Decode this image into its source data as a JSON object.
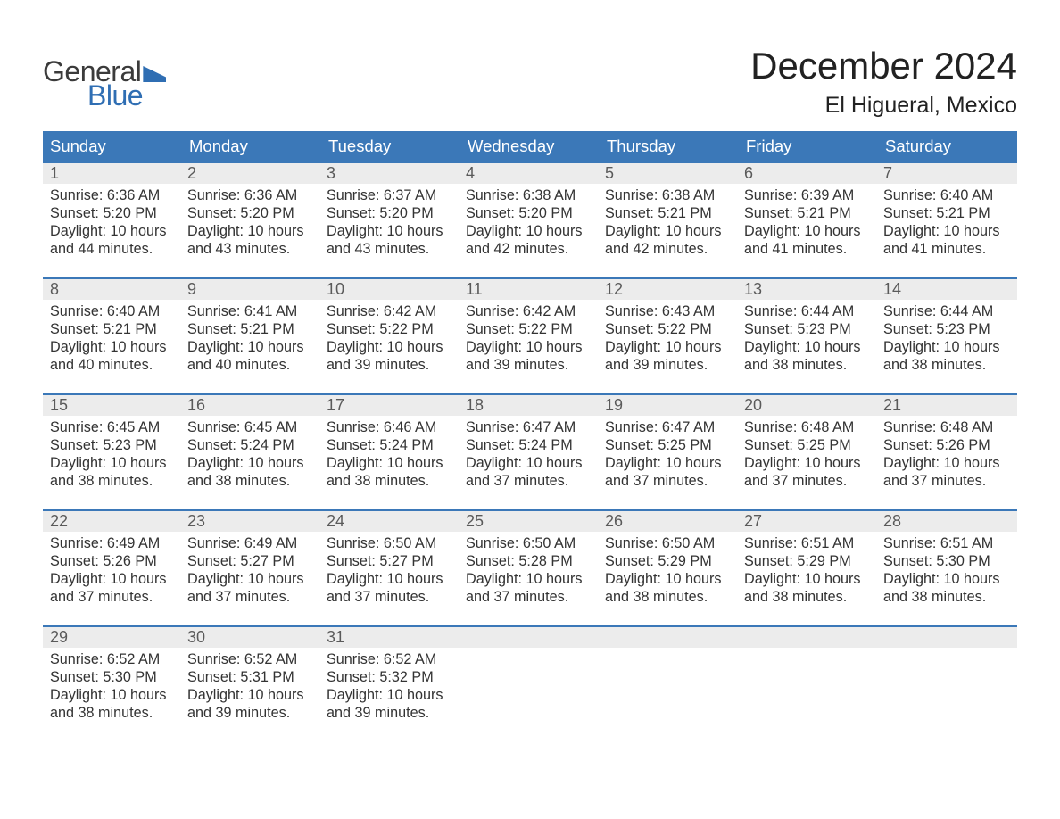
{
  "brand": {
    "general": "General",
    "blue": "Blue"
  },
  "title": "December 2024",
  "location": "El Higueral, Mexico",
  "colors": {
    "header_bg": "#3b78b8",
    "daynum_bg": "#ececec",
    "border": "#3b78b8",
    "text": "#333333",
    "daynum_text": "#5a5a5a",
    "logo_gray": "#3b3b3b",
    "logo_blue": "#2f6eb3",
    "page_bg": "#ffffff"
  },
  "typography": {
    "title_fontsize": 42,
    "location_fontsize": 25,
    "dow_fontsize": 18.5,
    "daynum_fontsize": 18,
    "body_fontsize": 16.2
  },
  "days_of_week": [
    "Sunday",
    "Monday",
    "Tuesday",
    "Wednesday",
    "Thursday",
    "Friday",
    "Saturday"
  ],
  "weeks": [
    [
      {
        "n": "1",
        "sunrise": "Sunrise: 6:36 AM",
        "sunset": "Sunset: 5:20 PM",
        "d1": "Daylight: 10 hours",
        "d2": "and 44 minutes."
      },
      {
        "n": "2",
        "sunrise": "Sunrise: 6:36 AM",
        "sunset": "Sunset: 5:20 PM",
        "d1": "Daylight: 10 hours",
        "d2": "and 43 minutes."
      },
      {
        "n": "3",
        "sunrise": "Sunrise: 6:37 AM",
        "sunset": "Sunset: 5:20 PM",
        "d1": "Daylight: 10 hours",
        "d2": "and 43 minutes."
      },
      {
        "n": "4",
        "sunrise": "Sunrise: 6:38 AM",
        "sunset": "Sunset: 5:20 PM",
        "d1": "Daylight: 10 hours",
        "d2": "and 42 minutes."
      },
      {
        "n": "5",
        "sunrise": "Sunrise: 6:38 AM",
        "sunset": "Sunset: 5:21 PM",
        "d1": "Daylight: 10 hours",
        "d2": "and 42 minutes."
      },
      {
        "n": "6",
        "sunrise": "Sunrise: 6:39 AM",
        "sunset": "Sunset: 5:21 PM",
        "d1": "Daylight: 10 hours",
        "d2": "and 41 minutes."
      },
      {
        "n": "7",
        "sunrise": "Sunrise: 6:40 AM",
        "sunset": "Sunset: 5:21 PM",
        "d1": "Daylight: 10 hours",
        "d2": "and 41 minutes."
      }
    ],
    [
      {
        "n": "8",
        "sunrise": "Sunrise: 6:40 AM",
        "sunset": "Sunset: 5:21 PM",
        "d1": "Daylight: 10 hours",
        "d2": "and 40 minutes."
      },
      {
        "n": "9",
        "sunrise": "Sunrise: 6:41 AM",
        "sunset": "Sunset: 5:21 PM",
        "d1": "Daylight: 10 hours",
        "d2": "and 40 minutes."
      },
      {
        "n": "10",
        "sunrise": "Sunrise: 6:42 AM",
        "sunset": "Sunset: 5:22 PM",
        "d1": "Daylight: 10 hours",
        "d2": "and 39 minutes."
      },
      {
        "n": "11",
        "sunrise": "Sunrise: 6:42 AM",
        "sunset": "Sunset: 5:22 PM",
        "d1": "Daylight: 10 hours",
        "d2": "and 39 minutes."
      },
      {
        "n": "12",
        "sunrise": "Sunrise: 6:43 AM",
        "sunset": "Sunset: 5:22 PM",
        "d1": "Daylight: 10 hours",
        "d2": "and 39 minutes."
      },
      {
        "n": "13",
        "sunrise": "Sunrise: 6:44 AM",
        "sunset": "Sunset: 5:23 PM",
        "d1": "Daylight: 10 hours",
        "d2": "and 38 minutes."
      },
      {
        "n": "14",
        "sunrise": "Sunrise: 6:44 AM",
        "sunset": "Sunset: 5:23 PM",
        "d1": "Daylight: 10 hours",
        "d2": "and 38 minutes."
      }
    ],
    [
      {
        "n": "15",
        "sunrise": "Sunrise: 6:45 AM",
        "sunset": "Sunset: 5:23 PM",
        "d1": "Daylight: 10 hours",
        "d2": "and 38 minutes."
      },
      {
        "n": "16",
        "sunrise": "Sunrise: 6:45 AM",
        "sunset": "Sunset: 5:24 PM",
        "d1": "Daylight: 10 hours",
        "d2": "and 38 minutes."
      },
      {
        "n": "17",
        "sunrise": "Sunrise: 6:46 AM",
        "sunset": "Sunset: 5:24 PM",
        "d1": "Daylight: 10 hours",
        "d2": "and 38 minutes."
      },
      {
        "n": "18",
        "sunrise": "Sunrise: 6:47 AM",
        "sunset": "Sunset: 5:24 PM",
        "d1": "Daylight: 10 hours",
        "d2": "and 37 minutes."
      },
      {
        "n": "19",
        "sunrise": "Sunrise: 6:47 AM",
        "sunset": "Sunset: 5:25 PM",
        "d1": "Daylight: 10 hours",
        "d2": "and 37 minutes."
      },
      {
        "n": "20",
        "sunrise": "Sunrise: 6:48 AM",
        "sunset": "Sunset: 5:25 PM",
        "d1": "Daylight: 10 hours",
        "d2": "and 37 minutes."
      },
      {
        "n": "21",
        "sunrise": "Sunrise: 6:48 AM",
        "sunset": "Sunset: 5:26 PM",
        "d1": "Daylight: 10 hours",
        "d2": "and 37 minutes."
      }
    ],
    [
      {
        "n": "22",
        "sunrise": "Sunrise: 6:49 AM",
        "sunset": "Sunset: 5:26 PM",
        "d1": "Daylight: 10 hours",
        "d2": "and 37 minutes."
      },
      {
        "n": "23",
        "sunrise": "Sunrise: 6:49 AM",
        "sunset": "Sunset: 5:27 PM",
        "d1": "Daylight: 10 hours",
        "d2": "and 37 minutes."
      },
      {
        "n": "24",
        "sunrise": "Sunrise: 6:50 AM",
        "sunset": "Sunset: 5:27 PM",
        "d1": "Daylight: 10 hours",
        "d2": "and 37 minutes."
      },
      {
        "n": "25",
        "sunrise": "Sunrise: 6:50 AM",
        "sunset": "Sunset: 5:28 PM",
        "d1": "Daylight: 10 hours",
        "d2": "and 37 minutes."
      },
      {
        "n": "26",
        "sunrise": "Sunrise: 6:50 AM",
        "sunset": "Sunset: 5:29 PM",
        "d1": "Daylight: 10 hours",
        "d2": "and 38 minutes."
      },
      {
        "n": "27",
        "sunrise": "Sunrise: 6:51 AM",
        "sunset": "Sunset: 5:29 PM",
        "d1": "Daylight: 10 hours",
        "d2": "and 38 minutes."
      },
      {
        "n": "28",
        "sunrise": "Sunrise: 6:51 AM",
        "sunset": "Sunset: 5:30 PM",
        "d1": "Daylight: 10 hours",
        "d2": "and 38 minutes."
      }
    ],
    [
      {
        "n": "29",
        "sunrise": "Sunrise: 6:52 AM",
        "sunset": "Sunset: 5:30 PM",
        "d1": "Daylight: 10 hours",
        "d2": "and 38 minutes."
      },
      {
        "n": "30",
        "sunrise": "Sunrise: 6:52 AM",
        "sunset": "Sunset: 5:31 PM",
        "d1": "Daylight: 10 hours",
        "d2": "and 39 minutes."
      },
      {
        "n": "31",
        "sunrise": "Sunrise: 6:52 AM",
        "sunset": "Sunset: 5:32 PM",
        "d1": "Daylight: 10 hours",
        "d2": "and 39 minutes."
      },
      {
        "empty": true
      },
      {
        "empty": true
      },
      {
        "empty": true
      },
      {
        "empty": true
      }
    ]
  ]
}
